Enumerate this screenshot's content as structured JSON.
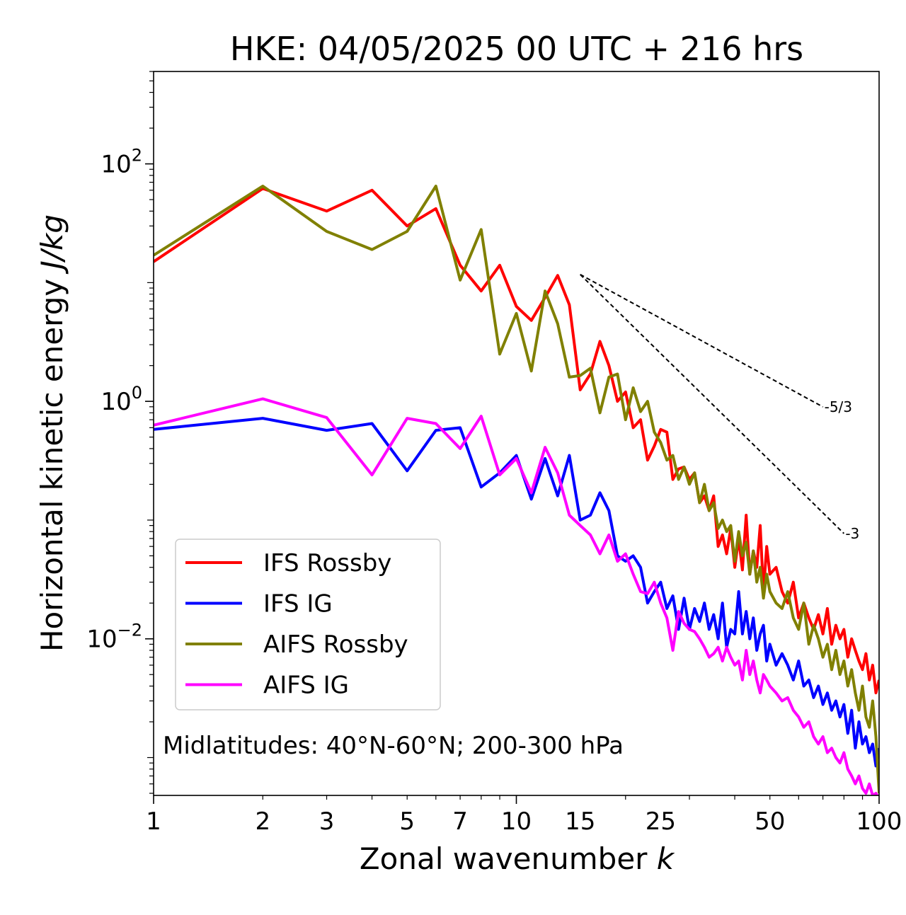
{
  "chart_data": {
    "type": "line",
    "title": "HKE: 04/05/2025 00 UTC + 216 hrs",
    "xlabel_main": "Zonal wavenumber ",
    "xlabel_var": "k",
    "ylabel_main": "Horizontal kinetic energy ",
    "ylabel_unit": "J/kg",
    "xscale": "log",
    "yscale": "log",
    "xlim": [
      1,
      100
    ],
    "ylim": [
      0.00048,
      600
    ],
    "grid": false,
    "legend_position": "lower-left",
    "x_ticks": [
      1,
      2,
      3,
      5,
      7,
      10,
      15,
      25,
      50,
      100
    ],
    "x_tick_labels": [
      "1",
      "2",
      "3",
      "5",
      "7",
      "10",
      "15",
      "25",
      "50",
      "100"
    ],
    "y_ticks": [
      {
        "value": 100,
        "base": "10",
        "exp": "2"
      },
      {
        "value": 1,
        "base": "10",
        "exp": "0"
      },
      {
        "value": 0.01,
        "base": "10",
        "exp": "−2"
      }
    ],
    "annotation": "Midlatitudes: 40°N-60°N; 200-300 hPa",
    "reference_lines": [
      {
        "label": "-5/3",
        "slope": -1.6667,
        "x_start": 15,
        "y_start": 11.7,
        "x_end": 70
      },
      {
        "label": "-3",
        "slope": -3,
        "x_start": 15,
        "y_start": 11.7,
        "x_end": 80
      }
    ],
    "series": [
      {
        "name": "IFS Rossby",
        "color": "#ff0000",
        "x": [
          1,
          2,
          3,
          4,
          5,
          6,
          7,
          8,
          9,
          10,
          11,
          12,
          13,
          14,
          15,
          16,
          17,
          18,
          19,
          20,
          21,
          22,
          23,
          24,
          25,
          26,
          27,
          28,
          29,
          30,
          31,
          32,
          33,
          34,
          35,
          36,
          37,
          38,
          39,
          40,
          41,
          42,
          43,
          44,
          45,
          46,
          47,
          48,
          49,
          50,
          52,
          54,
          56,
          58,
          60,
          62,
          64,
          66,
          68,
          70,
          72,
          74,
          76,
          78,
          80,
          82,
          84,
          86,
          88,
          90,
          92,
          94,
          96,
          98,
          100
        ],
        "values": [
          15,
          62,
          40,
          60,
          30,
          42,
          14,
          8.5,
          14,
          6.3,
          4.8,
          7.5,
          11.5,
          6.5,
          1.25,
          1.7,
          3.2,
          2.0,
          1.0,
          1.2,
          0.6,
          0.7,
          0.32,
          0.42,
          0.58,
          0.55,
          0.22,
          0.27,
          0.28,
          0.22,
          0.25,
          0.14,
          0.16,
          0.12,
          0.16,
          0.06,
          0.075,
          0.052,
          0.085,
          0.04,
          0.07,
          0.038,
          0.11,
          0.035,
          0.055,
          0.04,
          0.09,
          0.025,
          0.06,
          0.035,
          0.04,
          0.025,
          0.02,
          0.03,
          0.015,
          0.02,
          0.015,
          0.012,
          0.016,
          0.011,
          0.018,
          0.009,
          0.013,
          0.01,
          0.012,
          0.007,
          0.01,
          0.008,
          0.0065,
          0.0055,
          0.0075,
          0.0045,
          0.006,
          0.0035,
          0.0045
        ]
      },
      {
        "name": "IFS IG",
        "color": "#0000ff",
        "x": [
          1,
          2,
          3,
          4,
          5,
          6,
          7,
          8,
          9,
          10,
          11,
          12,
          13,
          14,
          15,
          16,
          17,
          18,
          19,
          20,
          21,
          22,
          23,
          24,
          25,
          26,
          27,
          28,
          29,
          30,
          31,
          32,
          33,
          34,
          35,
          36,
          37,
          38,
          39,
          40,
          41,
          42,
          43,
          44,
          45,
          46,
          47,
          48,
          49,
          50,
          52,
          54,
          56,
          58,
          60,
          62,
          64,
          66,
          68,
          70,
          72,
          74,
          76,
          78,
          80,
          82,
          84,
          86,
          88,
          90,
          92,
          94,
          96,
          98,
          100
        ],
        "values": [
          0.58,
          0.72,
          0.57,
          0.65,
          0.26,
          0.57,
          0.6,
          0.19,
          0.25,
          0.35,
          0.15,
          0.33,
          0.16,
          0.35,
          0.1,
          0.11,
          0.17,
          0.12,
          0.05,
          0.045,
          0.05,
          0.04,
          0.02,
          0.025,
          0.03,
          0.018,
          0.023,
          0.012,
          0.022,
          0.012,
          0.018,
          0.014,
          0.02,
          0.012,
          0.016,
          0.01,
          0.02,
          0.0085,
          0.012,
          0.011,
          0.025,
          0.011,
          0.017,
          0.01,
          0.015,
          0.008,
          0.011,
          0.013,
          0.0065,
          0.009,
          0.006,
          0.0075,
          0.006,
          0.0045,
          0.0065,
          0.004,
          0.0045,
          0.0032,
          0.004,
          0.0028,
          0.0035,
          0.0025,
          0.003,
          0.0022,
          0.0028,
          0.0016,
          0.0025,
          0.0012,
          0.002,
          0.0013,
          0.0015,
          0.0011,
          0.0013,
          0.00085,
          0.0012
        ]
      },
      {
        "name": "AIFS Rossby",
        "color": "#808000",
        "x": [
          1,
          2,
          3,
          4,
          5,
          6,
          7,
          8,
          9,
          10,
          11,
          12,
          13,
          14,
          15,
          16,
          17,
          18,
          19,
          20,
          21,
          22,
          23,
          24,
          25,
          26,
          27,
          28,
          29,
          30,
          31,
          32,
          33,
          34,
          35,
          36,
          37,
          38,
          39,
          40,
          41,
          42,
          43,
          44,
          45,
          46,
          47,
          48,
          49,
          50,
          52,
          54,
          56,
          58,
          60,
          62,
          64,
          66,
          68,
          70,
          72,
          74,
          76,
          78,
          80,
          82,
          84,
          86,
          88,
          90,
          92,
          94,
          96,
          98,
          100
        ],
        "values": [
          17,
          65,
          27,
          19,
          27,
          65,
          10.5,
          28,
          2.5,
          5.5,
          1.8,
          8.5,
          4.5,
          1.6,
          1.65,
          1.9,
          0.8,
          1.6,
          1.7,
          0.7,
          1.3,
          0.82,
          1.0,
          0.55,
          0.45,
          0.32,
          0.35,
          0.22,
          0.28,
          0.2,
          0.25,
          0.14,
          0.2,
          0.12,
          0.14,
          0.085,
          0.1,
          0.08,
          0.09,
          0.045,
          0.08,
          0.05,
          0.065,
          0.035,
          0.055,
          0.03,
          0.04,
          0.022,
          0.035,
          0.025,
          0.02,
          0.018,
          0.025,
          0.015,
          0.012,
          0.02,
          0.009,
          0.013,
          0.01,
          0.007,
          0.009,
          0.0055,
          0.008,
          0.005,
          0.0065,
          0.004,
          0.0055,
          0.0035,
          0.0025,
          0.004,
          0.0022,
          0.0018,
          0.003,
          0.0015,
          0.0005
        ]
      },
      {
        "name": "AIFS IG",
        "color": "#ff00ff",
        "x": [
          1,
          2,
          3,
          4,
          5,
          6,
          7,
          8,
          9,
          10,
          11,
          12,
          13,
          14,
          15,
          16,
          17,
          18,
          19,
          20,
          21,
          22,
          23,
          24,
          25,
          26,
          27,
          28,
          29,
          30,
          31,
          32,
          33,
          34,
          35,
          36,
          37,
          38,
          39,
          40,
          41,
          42,
          43,
          44,
          45,
          46,
          47,
          48,
          49,
          50,
          52,
          54,
          56,
          58,
          60,
          62,
          64,
          66,
          68,
          70,
          72,
          74,
          76,
          78,
          80,
          82,
          84,
          86,
          88,
          90,
          92,
          94,
          96,
          98,
          100
        ],
        "values": [
          0.63,
          1.05,
          0.73,
          0.24,
          0.72,
          0.65,
          0.4,
          0.75,
          0.24,
          0.33,
          0.17,
          0.41,
          0.25,
          0.11,
          0.09,
          0.075,
          0.052,
          0.075,
          0.045,
          0.052,
          0.035,
          0.025,
          0.024,
          0.03,
          0.02,
          0.015,
          0.008,
          0.017,
          0.0135,
          0.012,
          0.0115,
          0.01,
          0.0085,
          0.007,
          0.0075,
          0.0085,
          0.0065,
          0.0085,
          0.007,
          0.006,
          0.0065,
          0.0045,
          0.008,
          0.005,
          0.0065,
          0.0045,
          0.0035,
          0.005,
          0.0045,
          0.004,
          0.0035,
          0.003,
          0.0032,
          0.0025,
          0.0022,
          0.0018,
          0.002,
          0.0015,
          0.0013,
          0.0015,
          0.0011,
          0.0012,
          0.001,
          0.0009,
          0.0011,
          0.0008,
          0.0007,
          0.0006,
          0.0007,
          0.00055,
          0.0005,
          0.0006,
          0.00048,
          0.0005,
          0.00045
        ]
      }
    ]
  }
}
